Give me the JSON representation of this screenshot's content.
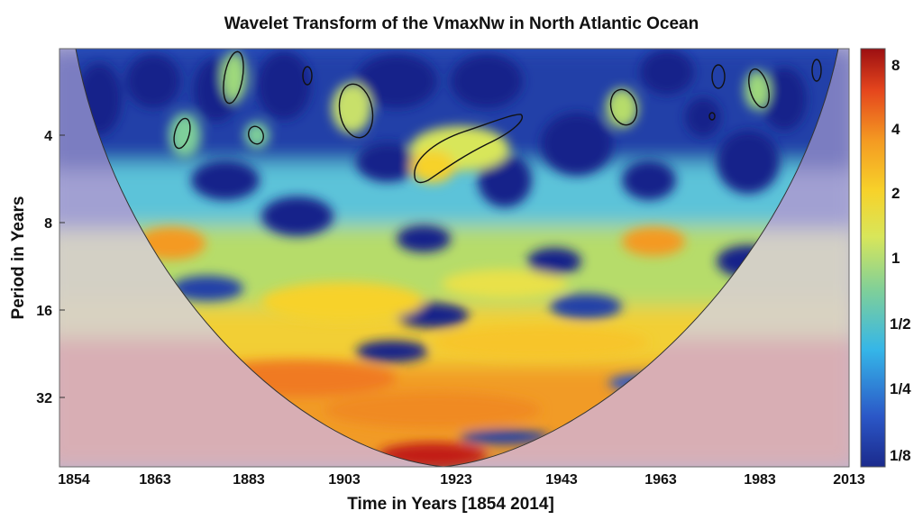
{
  "chart_data": {
    "type": "heatmap",
    "title": "Wavelet Transform of the VmaxNw in North Atlantic Ocean",
    "xlabel": "Time in Years [1854 2014]",
    "ylabel": "Period in Years",
    "x_ticks": [
      "1854",
      "1863",
      "1883",
      "1903",
      "1923",
      "1943",
      "1963",
      "1983",
      "2013"
    ],
    "y_ticks": [
      "4",
      "8",
      "16",
      "32"
    ],
    "colorbar_ticks": [
      "8",
      "4",
      "2",
      "1",
      "1/2",
      "1/4",
      "1/8"
    ],
    "y_scale": "log2",
    "x_range": [
      1854,
      2014
    ],
    "colormap": [
      "#1b2a8c",
      "#2b57c7",
      "#35b6e8",
      "#7ecf9a",
      "#d8e65a",
      "#f7d22a",
      "#f49a22",
      "#e5461d",
      "#9c0f12"
    ],
    "features": [
      {
        "time": 1868,
        "period": 9.5,
        "power": 4
      },
      {
        "time": 1925,
        "period": 5,
        "power": 2.5
      },
      {
        "time": 1963,
        "period": 9.5,
        "power": 3.5
      },
      {
        "time": 1925,
        "period": 24,
        "power": 4
      },
      {
        "time": 1923,
        "period": 48,
        "power": 8
      }
    ]
  }
}
